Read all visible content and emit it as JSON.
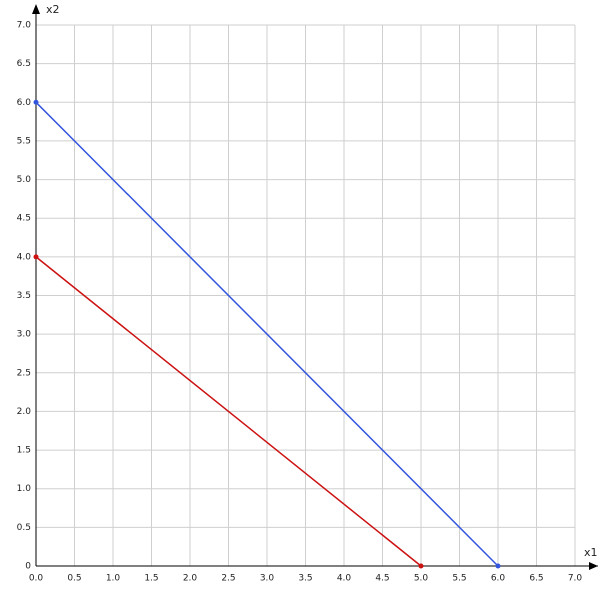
{
  "chart_data": {
    "type": "line",
    "x_label": "x1",
    "y_label": "x2",
    "xlim": [
      0,
      7
    ],
    "ylim": [
      0,
      7
    ],
    "xticks": [
      {
        "value": 0,
        "label": "0.0"
      },
      0.5,
      {
        "value": 1,
        "label": "1.0"
      },
      1.5,
      {
        "value": 2,
        "label": "2.0"
      },
      2.5,
      {
        "value": 3,
        "label": "3.0"
      },
      3.5,
      {
        "value": 4,
        "label": "4.0"
      },
      4.5,
      {
        "value": 5,
        "label": "5.0"
      },
      5.5,
      {
        "value": 6,
        "label": "6.0"
      },
      6.5,
      {
        "value": 7,
        "label": "7.0"
      }
    ],
    "yticks": [
      0,
      0.5,
      {
        "value": 1,
        "label": "1.0"
      },
      1.5,
      {
        "value": 2,
        "label": "2.0"
      },
      2.5,
      {
        "value": 3,
        "label": "3.0"
      },
      3.5,
      {
        "value": 4,
        "label": "4.0"
      },
      4.5,
      {
        "value": 5,
        "label": "5.0"
      },
      5.5,
      {
        "value": 6,
        "label": "6.0"
      },
      6.5,
      {
        "value": 7,
        "label": "7.0"
      }
    ],
    "grid": true,
    "series": [
      {
        "color": "#3355dd",
        "x": [
          0,
          6
        ],
        "values": [
          6,
          0
        ]
      },
      {
        "color": "#cc1111",
        "x": [
          0,
          5
        ],
        "values": [
          4,
          0
        ]
      }
    ]
  }
}
